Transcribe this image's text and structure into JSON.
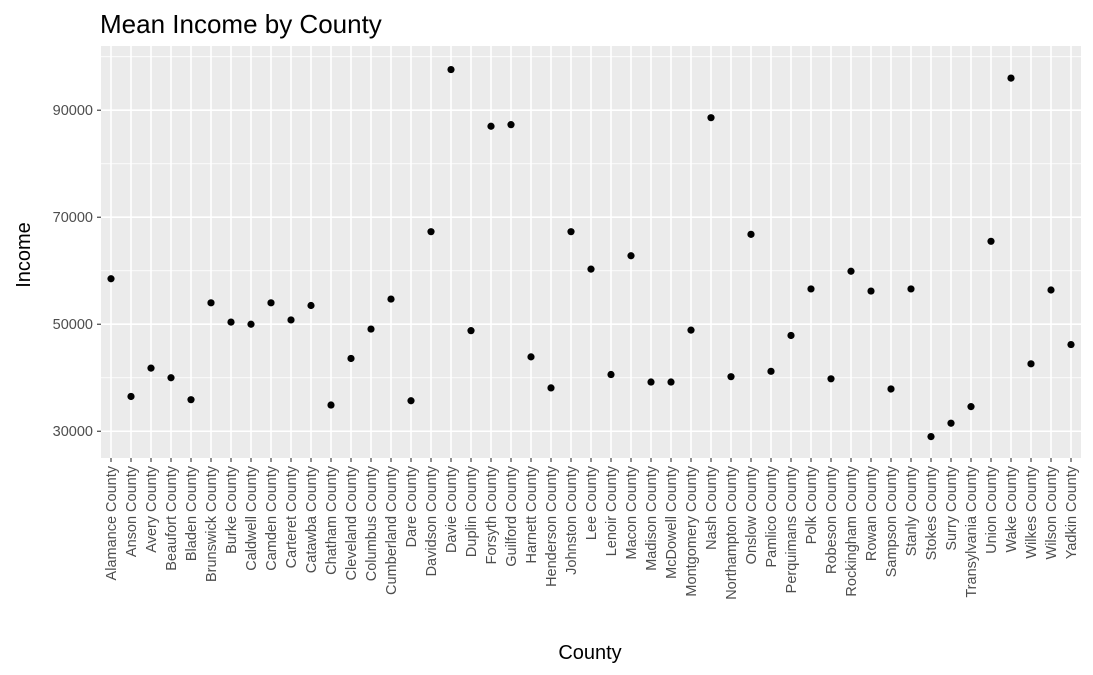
{
  "chart_data": {
    "type": "scatter",
    "title": "Mean Income by County",
    "xlabel": "County",
    "ylabel": "Income",
    "ylim": [
      25000,
      102000
    ],
    "yticks": [
      30000,
      50000,
      70000,
      90000
    ],
    "ytick_labels": [
      "30000",
      "50000",
      "70000",
      "90000"
    ],
    "grid": true,
    "legend": "none",
    "point_color": "#000000",
    "panel_background": "#ebebeb",
    "categories": [
      "Alamance County",
      "Anson County",
      "Avery County",
      "Beaufort County",
      "Bladen County",
      "Brunswick County",
      "Burke County",
      "Caldwell County",
      "Camden County",
      "Carteret County",
      "Catawba County",
      "Chatham County",
      "Cleveland County",
      "Columbus County",
      "Cumberland County",
      "Dare County",
      "Davidson County",
      "Davie County",
      "Duplin County",
      "Forsyth County",
      "Guilford County",
      "Harnett County",
      "Henderson County",
      "Johnston County",
      "Lee County",
      "Lenoir County",
      "Macon County",
      "Madison County",
      "McDowell County",
      "Montgomery County",
      "Nash County",
      "Northampton County",
      "Onslow County",
      "Pamlico County",
      "Perquimans County",
      "Polk County",
      "Robeson County",
      "Rockingham County",
      "Rowan County",
      "Sampson County",
      "Stanly County",
      "Stokes County",
      "Surry County",
      "Transylvania County",
      "Union County",
      "Wake County",
      "Wilkes County",
      "Wilson County",
      "Yadkin County"
    ],
    "values": [
      58500,
      36500,
      41800,
      40000,
      35900,
      54000,
      50400,
      50000,
      54000,
      50800,
      53500,
      34900,
      43600,
      49100,
      54700,
      35700,
      67300,
      97600,
      48800,
      87000,
      87300,
      43900,
      38100,
      67300,
      60300,
      40600,
      62800,
      39200,
      39200,
      48900,
      88600,
      40200,
      66800,
      41200,
      47900,
      56600,
      39800,
      59900,
      56200,
      37900,
      56600,
      29000,
      31500,
      34600,
      65500,
      96000,
      42600,
      56400,
      46200
    ]
  }
}
